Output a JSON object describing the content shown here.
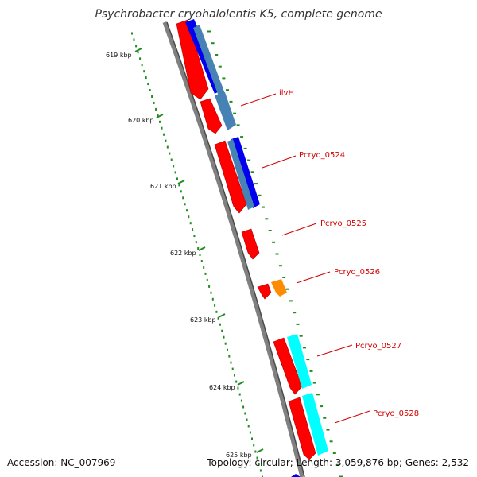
{
  "title": "Psychrobacter cryohalolentis K5, complete genome",
  "footer": {
    "accession": "Accession: NC_007969",
    "summary": "Topology: circular; Length: 3,059,876 bp; Genes: 2,532"
  },
  "ruler": {
    "labels": [
      "619 kbp",
      "620 kbp",
      "621 kbp",
      "622 kbp",
      "623 kbp",
      "624 kbp",
      "625 kbp"
    ]
  },
  "genes": [
    {
      "name": "ilvH"
    },
    {
      "name": "Pcryo_0524"
    },
    {
      "name": "Pcryo_0525"
    },
    {
      "name": "Pcryo_0526"
    },
    {
      "name": "Pcryo_0527"
    },
    {
      "name": "Pcryo_0528"
    }
  ],
  "colors": {
    "forward_gene": "#ff0000",
    "cds_blue": "#0000ee",
    "cds_steel": "#4682b4",
    "cds_orange": "#ff8c00",
    "cds_cyan": "#00ffff",
    "backbone": "#808080",
    "ruler_ticks": "#228b22",
    "label_text": "#d40000"
  }
}
